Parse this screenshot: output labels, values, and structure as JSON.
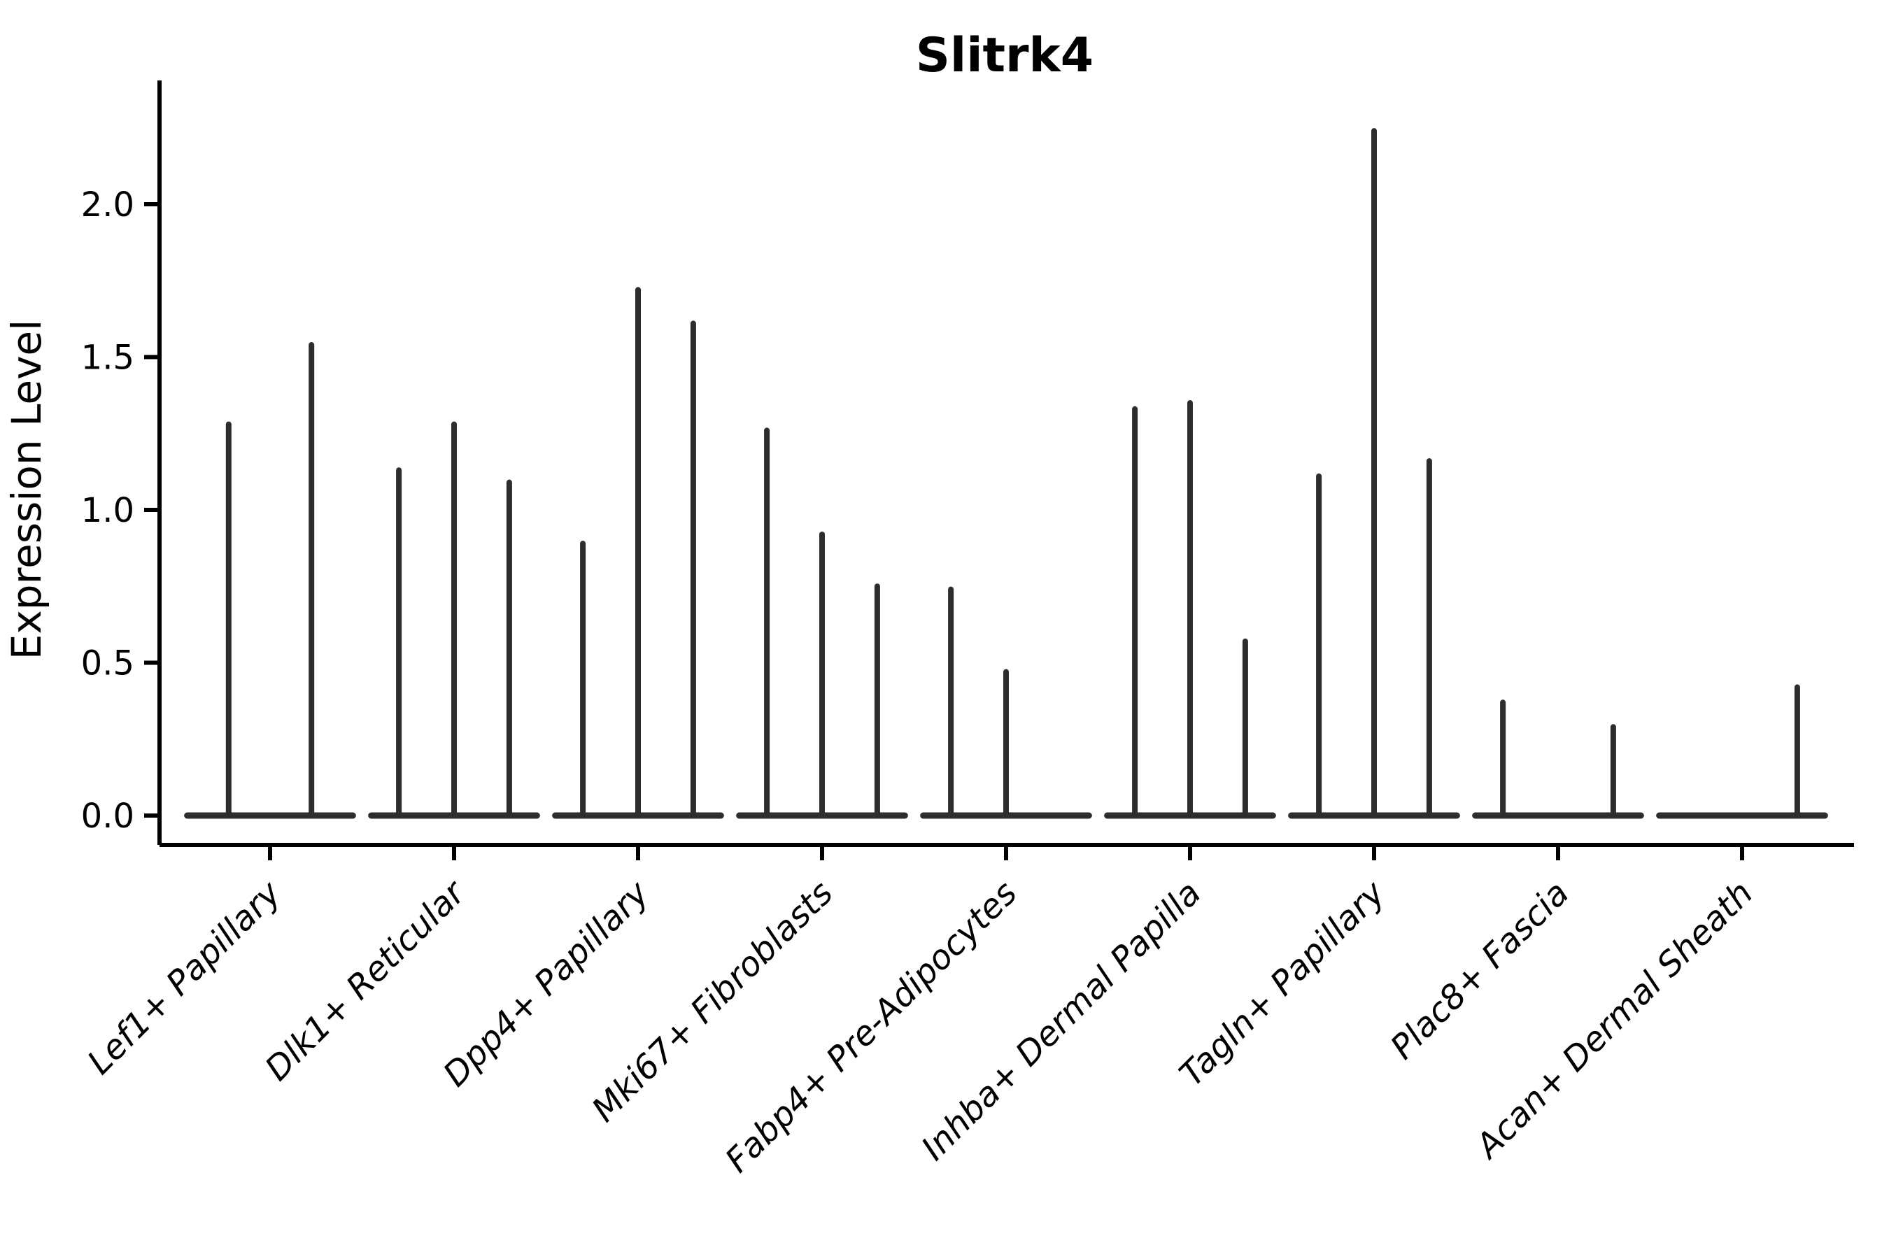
{
  "chart_data": {
    "type": "violin",
    "title": "Slitrk4",
    "ylabel": "Expression Level",
    "xlabel": "",
    "yticks": [
      "0.0",
      "0.5",
      "1.0",
      "1.5",
      "2.0"
    ],
    "ytick_values": [
      0.0,
      0.5,
      1.0,
      1.5,
      2.0
    ],
    "ylim": [
      -0.1,
      2.4
    ],
    "grid": false,
    "legend": "none",
    "violin_color": "#2d2d2d",
    "axis_color": "#000000",
    "categories": [
      "Lef1+ Papillary",
      "Dlk1+ Reticular",
      "Dpp4+ Papillary",
      "Mki67+ Fibroblasts",
      "Fabp4+ Pre-Adipocytes",
      "Inhba+ Dermal Papilla",
      "Tagln+ Papillary",
      "Plac8+ Fascia",
      "Acan+ Dermal Sheath"
    ],
    "groups": [
      {
        "label": "Lef1+ Papillary",
        "violins": [
          {
            "offset": -0.225,
            "max": 1.28
          },
          {
            "offset": 0.225,
            "max": 1.54
          }
        ]
      },
      {
        "label": "Dlk1+ Reticular",
        "violins": [
          {
            "offset": -0.3,
            "max": 1.13
          },
          {
            "offset": 0.0,
            "max": 1.28
          },
          {
            "offset": 0.3,
            "max": 1.09
          }
        ]
      },
      {
        "label": "Dpp4+ Papillary",
        "violins": [
          {
            "offset": -0.3,
            "max": 0.89
          },
          {
            "offset": 0.0,
            "max": 1.72
          },
          {
            "offset": 0.3,
            "max": 1.61
          }
        ]
      },
      {
        "label": "Mki67+ Fibroblasts",
        "violins": [
          {
            "offset": -0.3,
            "max": 1.26
          },
          {
            "offset": 0.0,
            "max": 0.92
          },
          {
            "offset": 0.3,
            "max": 0.75
          }
        ]
      },
      {
        "label": "Fabp4+ Pre-Adipocytes",
        "violins": [
          {
            "offset": -0.3,
            "max": 0.74
          },
          {
            "offset": 0.0,
            "max": 0.47
          },
          {
            "offset": 0.3,
            "max": 0.0
          }
        ]
      },
      {
        "label": "Inhba+ Dermal Papilla",
        "violins": [
          {
            "offset": -0.3,
            "max": 1.33
          },
          {
            "offset": 0.0,
            "max": 1.35
          },
          {
            "offset": 0.3,
            "max": 0.57
          }
        ]
      },
      {
        "label": "Tagln+ Papillary",
        "violins": [
          {
            "offset": -0.3,
            "max": 1.11
          },
          {
            "offset": 0.0,
            "max": 2.24
          },
          {
            "offset": 0.3,
            "max": 1.16
          }
        ]
      },
      {
        "label": "Plac8+ Fascia",
        "violins": [
          {
            "offset": -0.3,
            "max": 0.37
          },
          {
            "offset": 0.0,
            "max": 0.0
          },
          {
            "offset": 0.3,
            "max": 0.29
          }
        ]
      },
      {
        "label": "Acan+ Dermal Sheath",
        "violins": [
          {
            "offset": -0.3,
            "max": 0.0
          },
          {
            "offset": 0.0,
            "max": 0.0
          },
          {
            "offset": 0.3,
            "max": 0.42
          }
        ]
      }
    ],
    "group_half_width": 0.45
  }
}
